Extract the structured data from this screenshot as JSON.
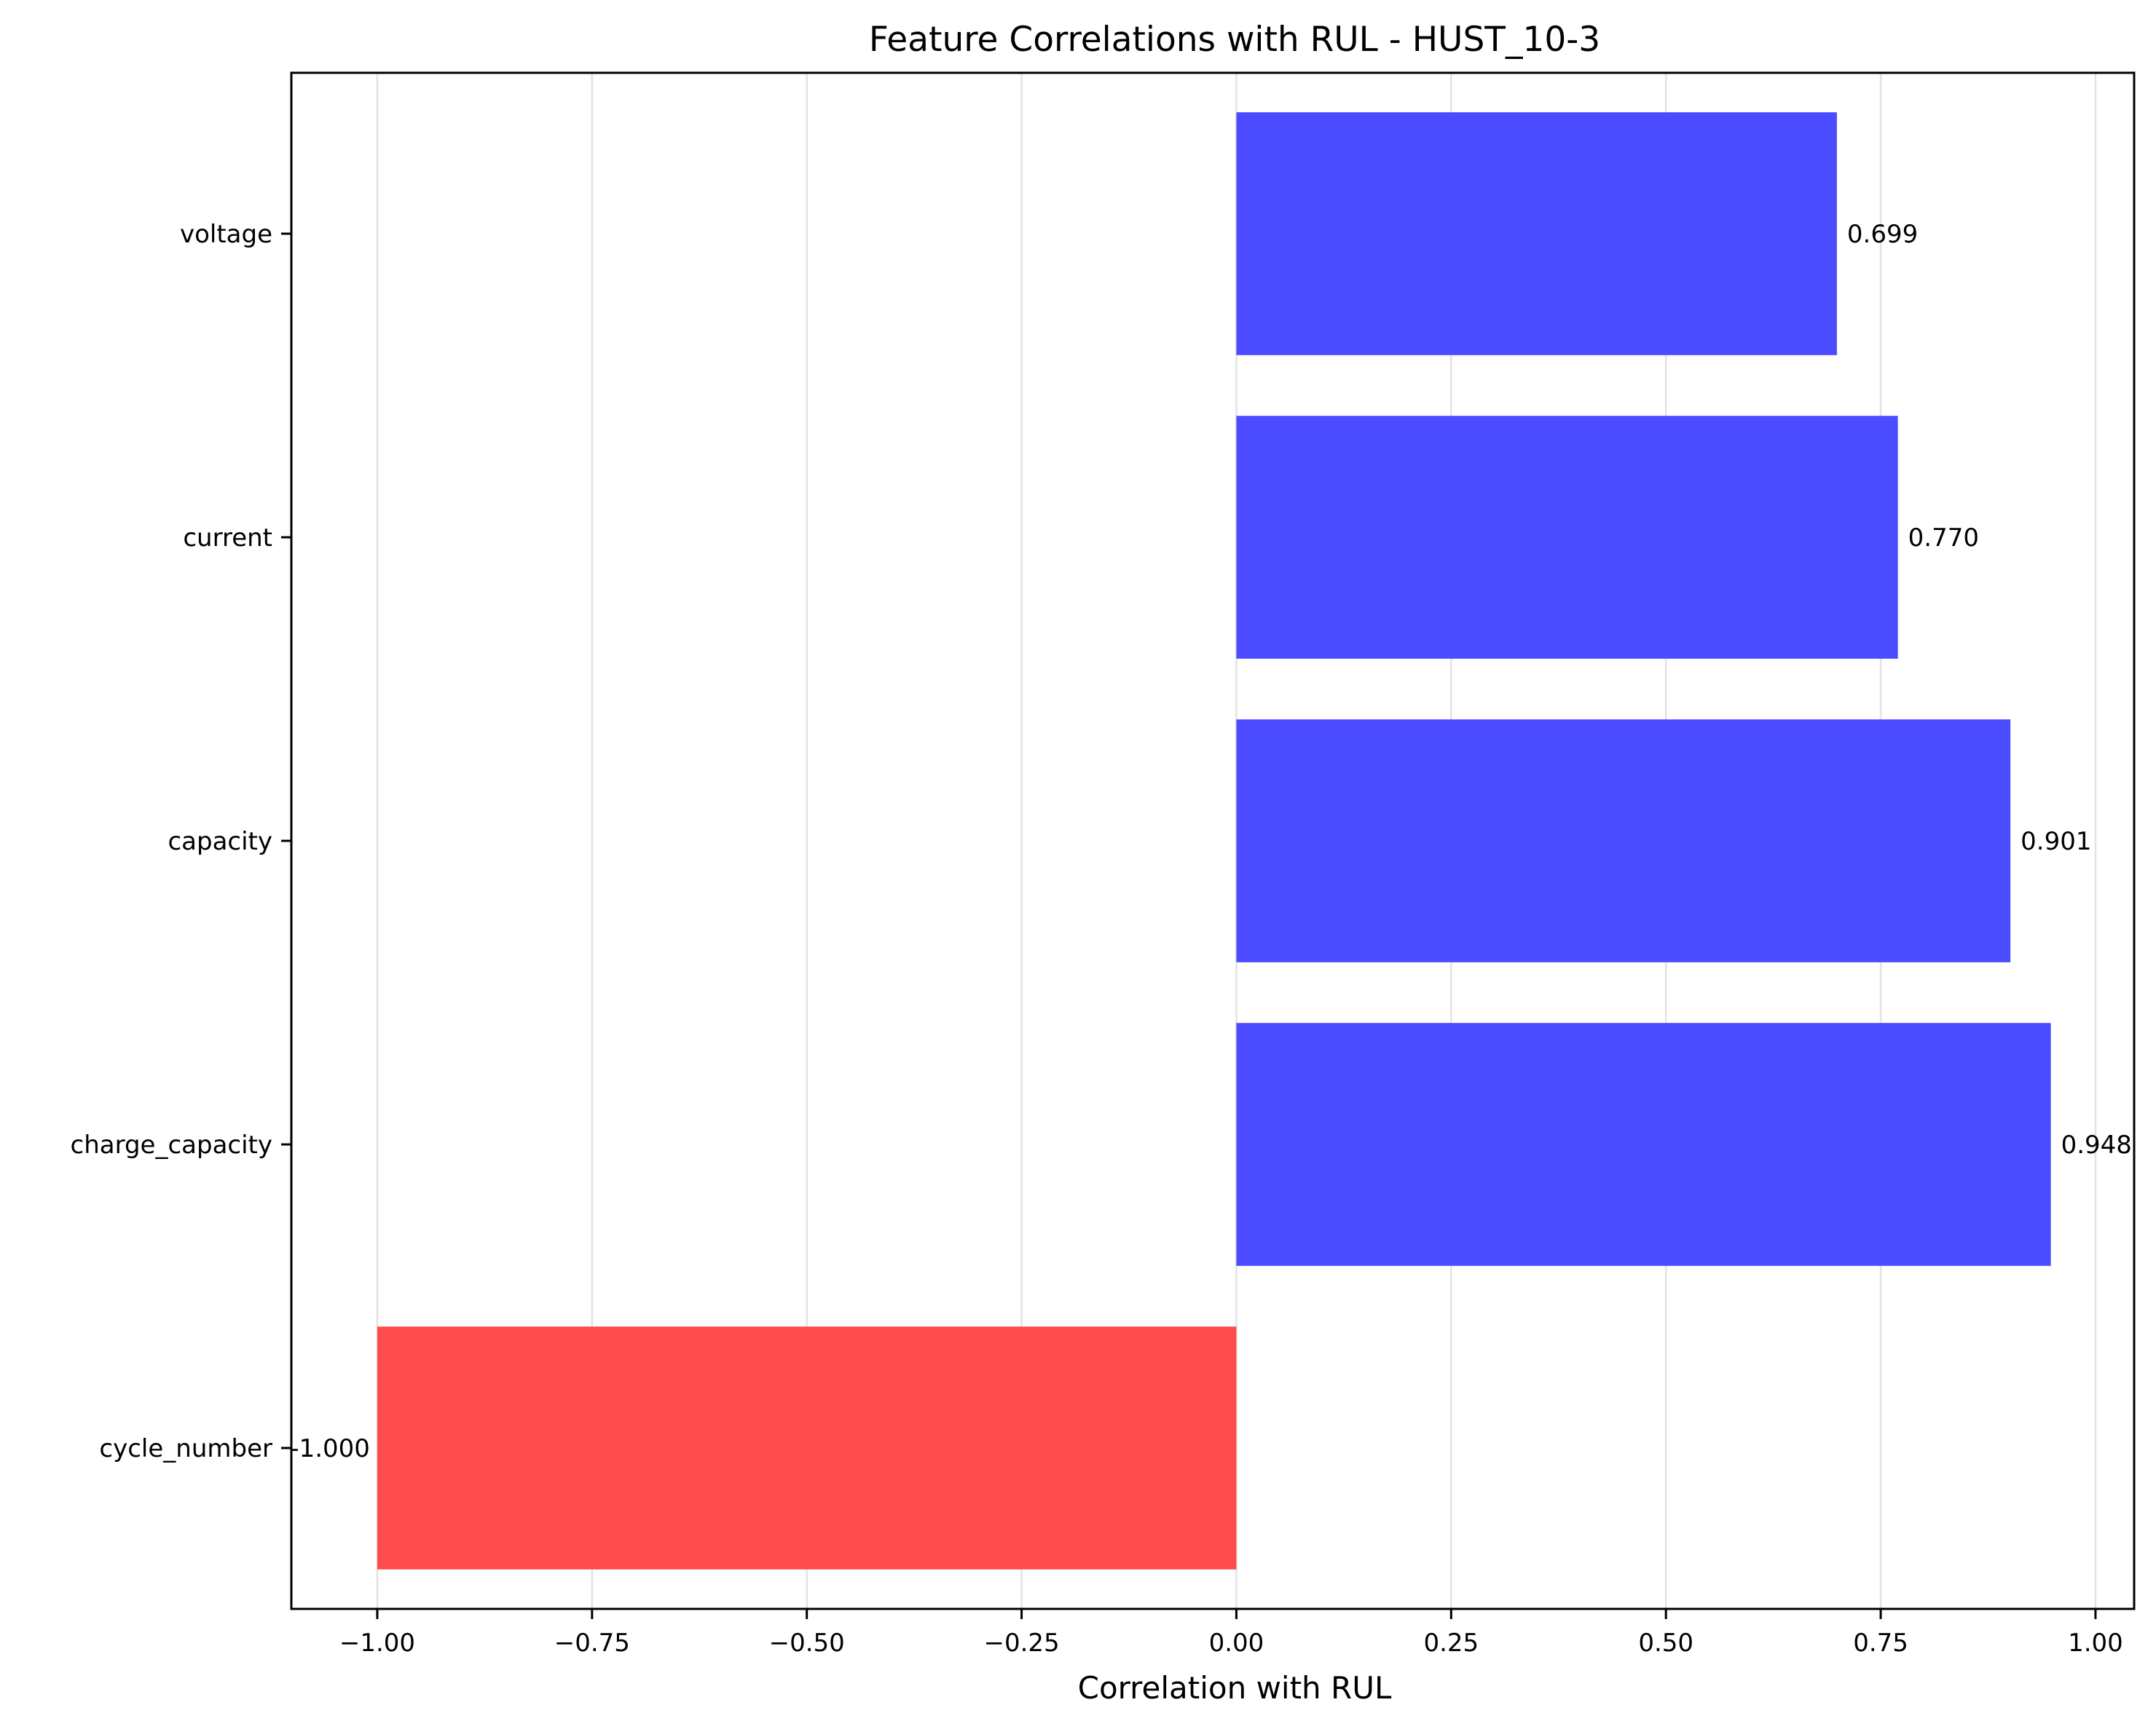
{
  "chart_data": {
    "type": "bar",
    "orientation": "horizontal",
    "title": "Feature Correlations with RUL - HUST_10-3",
    "xlabel": "Correlation with RUL",
    "ylabel": "",
    "xlim": [
      -1.1,
      1.045
    ],
    "xticks": [
      -1.0,
      -0.75,
      -0.5,
      -0.25,
      0.0,
      0.25,
      0.5,
      0.75,
      1.0
    ],
    "xtick_labels": [
      "−1.00",
      "−0.75",
      "−0.50",
      "−0.25",
      "0.00",
      "0.25",
      "0.50",
      "0.75",
      "1.00"
    ],
    "categories": [
      "cycle_number",
      "charge_capacity",
      "capacity",
      "current",
      "voltage"
    ],
    "values": [
      -1.0,
      0.948,
      0.901,
      0.77,
      0.699
    ],
    "value_labels": [
      "-1.000",
      "0.948",
      "0.901",
      "0.770",
      "0.699"
    ],
    "colors": {
      "positive": "#4b4bff",
      "negative": "#ff4b4b"
    },
    "grid": "vertical"
  }
}
